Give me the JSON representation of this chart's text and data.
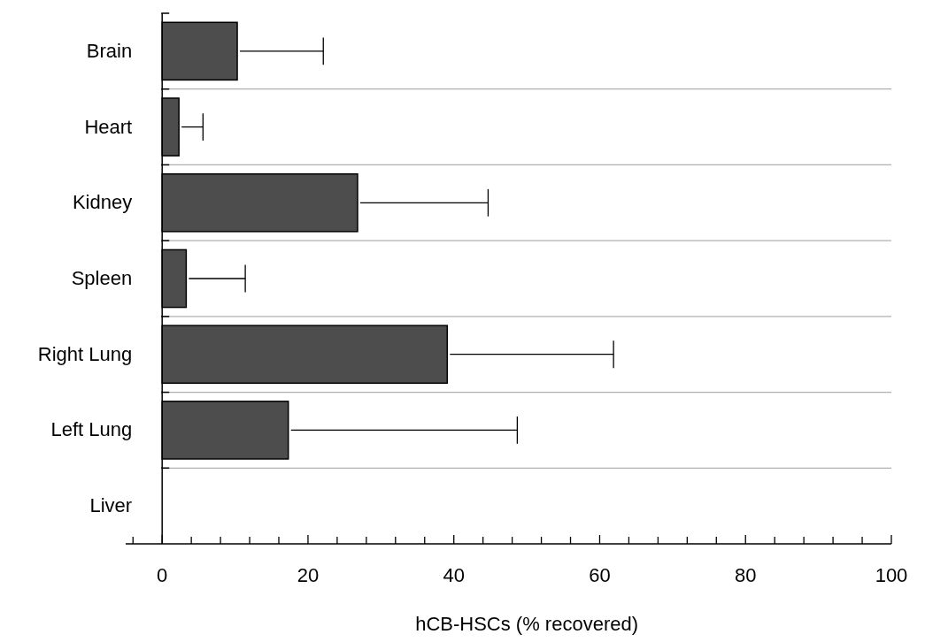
{
  "chart_data": {
    "type": "bar",
    "orientation": "horizontal",
    "categories": [
      "Brain",
      "Heart",
      "Kidney",
      "Spleen",
      "Right Lung",
      "Left Lung",
      "Liver"
    ],
    "values": [
      10.3,
      2.3,
      26.8,
      3.3,
      39.1,
      17.3,
      0
    ],
    "errors": [
      [
        10.3,
        22.1
      ],
      [
        2.3,
        5.6
      ],
      [
        26.8,
        44.7
      ],
      [
        3.3,
        11.4
      ],
      [
        39.1,
        61.9
      ],
      [
        17.3,
        48.7
      ],
      null
    ],
    "color": "#4d4d4d",
    "xlabel": "hCB-HSCs (% recovered)",
    "xlim": [
      -5,
      100
    ],
    "xticks": [
      {
        "value": -4,
        "label": null
      },
      0,
      {
        "value": 4,
        "label": null
      },
      {
        "value": 8,
        "label": null
      },
      {
        "value": 12,
        "label": null
      },
      {
        "value": 16,
        "label": null
      },
      20,
      {
        "value": 24,
        "label": null
      },
      {
        "value": 28,
        "label": null
      },
      {
        "value": 32,
        "label": null
      },
      {
        "value": 36,
        "label": null
      },
      40,
      {
        "value": 44,
        "label": null
      },
      {
        "value": 48,
        "label": null
      },
      {
        "value": 52,
        "label": null
      },
      {
        "value": 56,
        "label": null
      },
      60,
      {
        "value": 64,
        "label": null
      },
      {
        "value": 68,
        "label": null
      },
      {
        "value": 72,
        "label": null
      },
      {
        "value": 76,
        "label": null
      },
      80,
      {
        "value": 84,
        "label": null
      },
      {
        "value": 88,
        "label": null
      },
      {
        "value": 92,
        "label": null
      },
      {
        "value": 96,
        "label": null
      },
      100
    ],
    "grid": "y"
  }
}
